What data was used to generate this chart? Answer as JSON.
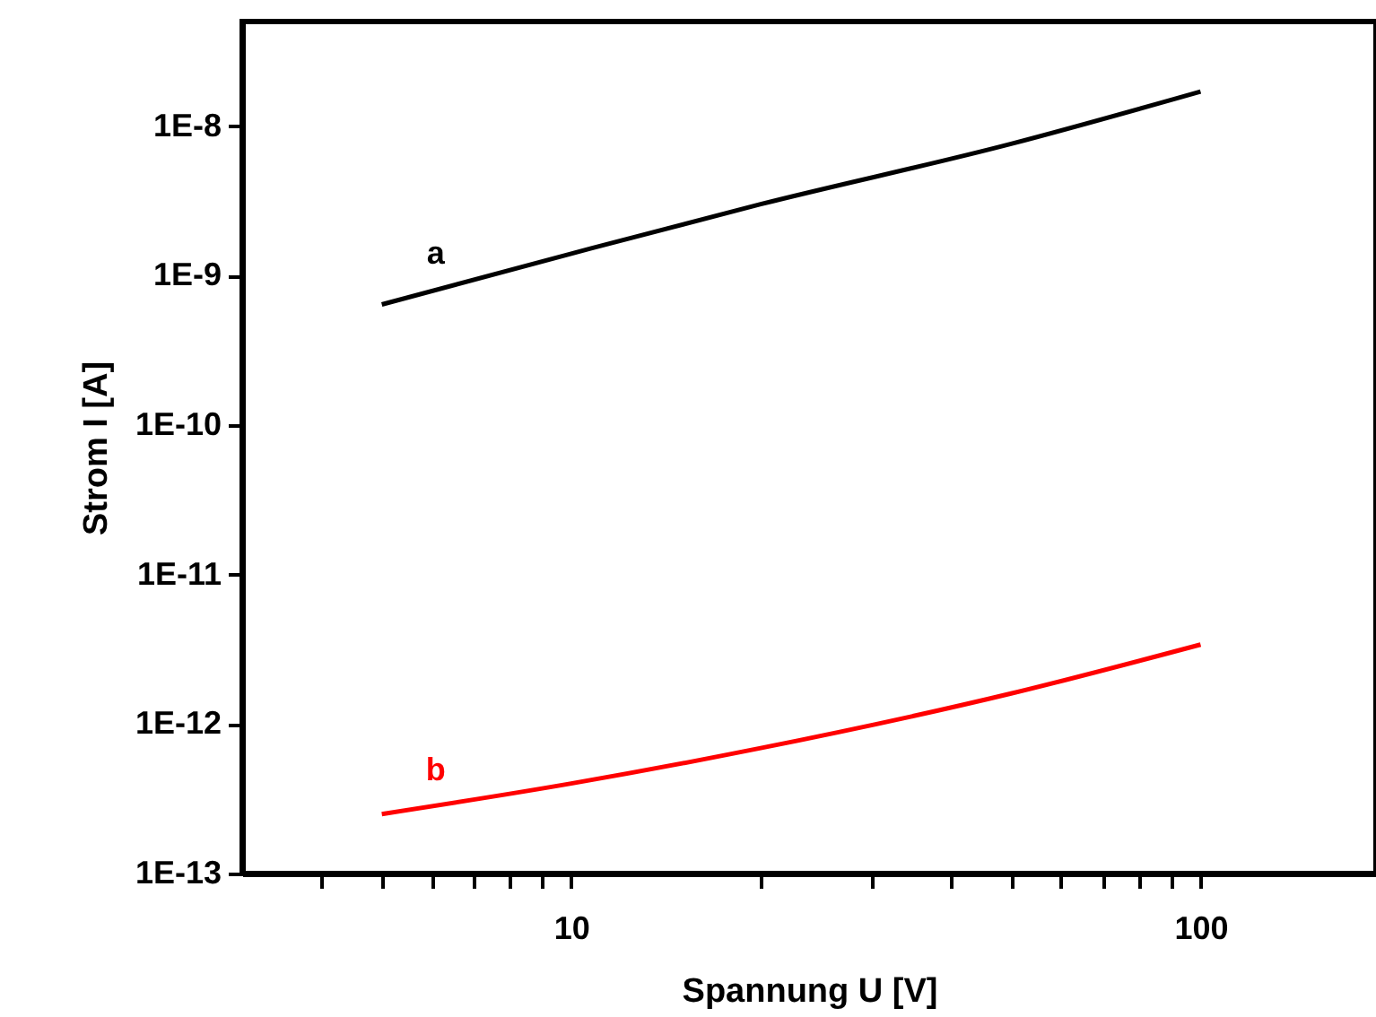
{
  "chart_data": {
    "type": "line",
    "xlabel": "Spannung U [V]",
    "ylabel": "Strom I [A]",
    "log": "xy",
    "grid": false,
    "xlim": [
      3,
      190
    ],
    "ylim": [
      1e-13,
      5e-08
    ],
    "xticks": [
      {
        "value": 4,
        "label": null
      },
      {
        "value": 5,
        "label": null
      },
      {
        "value": 6,
        "label": null
      },
      {
        "value": 7,
        "label": null
      },
      {
        "value": 8,
        "label": null
      },
      {
        "value": 9,
        "label": null
      },
      10,
      {
        "value": 20,
        "label": null
      },
      {
        "value": 30,
        "label": null
      },
      {
        "value": 40,
        "label": null
      },
      {
        "value": 50,
        "label": null
      },
      {
        "value": 60,
        "label": null
      },
      {
        "value": 70,
        "label": null
      },
      {
        "value": 80,
        "label": null
      },
      {
        "value": 90,
        "label": null
      },
      100
    ],
    "yticks": [
      {
        "value": 1e-13,
        "label": "1E-13"
      },
      {
        "value": 1e-12,
        "label": "1E-12"
      },
      {
        "value": 1e-11,
        "label": "1E-11"
      },
      {
        "value": 1e-10,
        "label": "1E-10"
      },
      {
        "value": 1e-09,
        "label": "1E-9"
      },
      {
        "value": 1e-08,
        "label": "1E-8"
      }
    ],
    "series": [
      {
        "name": "a",
        "color": "#000000",
        "x": [
          5,
          10,
          20,
          50,
          100
        ],
        "values": [
          6.4e-10,
          1.4e-09,
          3e-09,
          7.6e-09,
          1.7e-08
        ]
      },
      {
        "name": "b",
        "color": "#ff0000",
        "x": [
          5,
          10,
          20,
          50,
          100
        ],
        "values": [
          2.5e-13,
          4e-13,
          6.9e-13,
          1.6e-12,
          3.4e-12
        ]
      }
    ]
  }
}
